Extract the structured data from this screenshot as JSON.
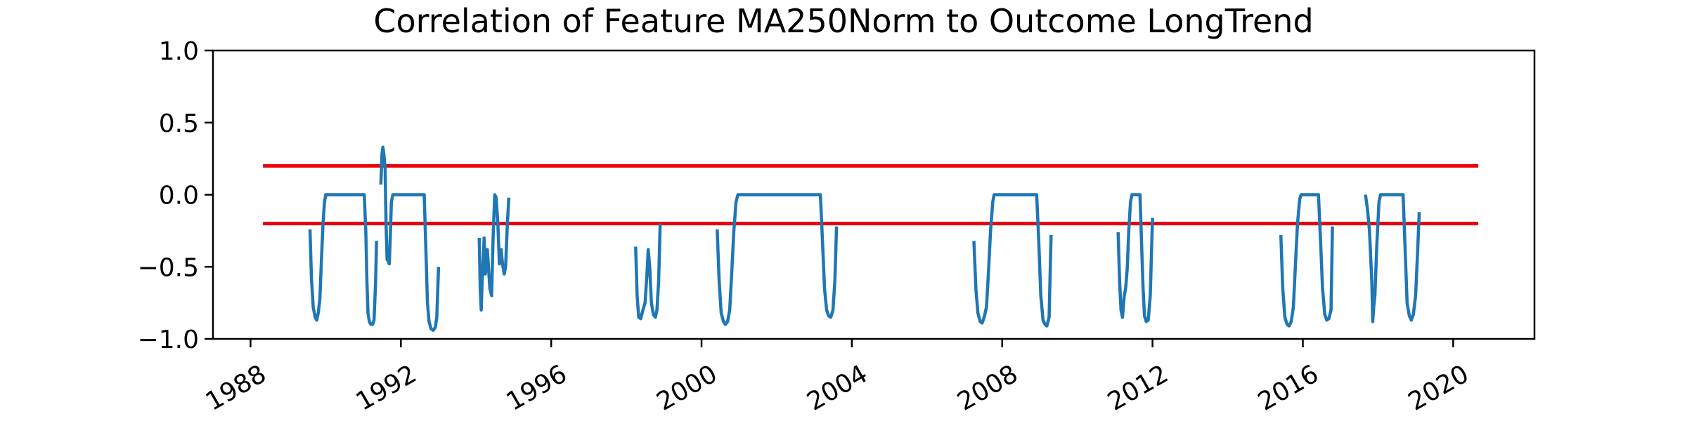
{
  "chart_data": {
    "type": "line",
    "title": "Correlation of Feature MA250Norm to Outcome LongTrend",
    "xlabel": "",
    "ylabel": "",
    "xlim": [
      "1987-01-01",
      "2022-03-01"
    ],
    "ylim": [
      -1.0,
      1.0
    ],
    "x_ticks": [
      "1988",
      "1992",
      "1996",
      "2000",
      "2004",
      "2008",
      "2012",
      "2016",
      "2020"
    ],
    "y_ticks": [
      "1.0",
      "0.5",
      "0.0",
      "−0.5",
      "−1.0"
    ],
    "y_tick_values": [
      1.0,
      0.5,
      0.0,
      -0.5,
      -1.0
    ],
    "grid": false,
    "legend": "none",
    "colors": {
      "series": "#1f77b4",
      "threshold": "#e8000b",
      "axis": "#000000"
    },
    "thresholds": [
      {
        "y": 0.2,
        "x_start": "1988-05-01",
        "x_end": "2020-09-01"
      },
      {
        "y": -0.2,
        "x_start": "1988-05-01",
        "x_end": "2020-09-01"
      }
    ],
    "series": [
      {
        "segments": [
          [
            [
              "1989-08-01",
              -0.24
            ],
            [
              "1989-08-15",
              -0.58
            ],
            [
              "1989-09-01",
              -0.78
            ],
            [
              "1989-09-20",
              -0.85
            ],
            [
              "1989-10-05",
              -0.87
            ],
            [
              "1989-10-20",
              -0.82
            ],
            [
              "1989-11-05",
              -0.72
            ],
            [
              "1989-11-20",
              -0.45
            ],
            [
              "1989-12-05",
              -0.2
            ],
            [
              "1989-12-20",
              -0.05
            ],
            [
              "1990-01-01",
              0.0
            ],
            [
              "1991-01-10",
              0.0
            ],
            [
              "1991-01-25",
              -0.25
            ],
            [
              "1991-02-05",
              -0.6
            ],
            [
              "1991-02-15",
              -0.82
            ],
            [
              "1991-03-01",
              -0.88
            ],
            [
              "1991-03-15",
              -0.9
            ],
            [
              "1991-04-01",
              -0.9
            ],
            [
              "1991-04-15",
              -0.87
            ],
            [
              "1991-05-01",
              -0.6
            ],
            [
              "1991-05-10",
              -0.32
            ]
          ],
          [
            [
              "1991-06-20",
              0.07
            ],
            [
              "1991-07-01",
              0.28
            ],
            [
              "1991-07-10",
              0.33
            ],
            [
              "1991-07-20",
              0.28
            ],
            [
              "1991-08-01",
              0.18
            ],
            [
              "1991-08-10",
              -0.2
            ],
            [
              "1991-08-20",
              -0.45
            ],
            [
              "1991-09-01",
              -0.46
            ],
            [
              "1991-09-10",
              -0.48
            ],
            [
              "1991-09-20",
              -0.3
            ],
            [
              "1991-10-01",
              -0.05
            ],
            [
              "1991-10-15",
              0.0
            ],
            [
              "1992-08-15",
              0.0
            ],
            [
              "1992-09-01",
              -0.4
            ],
            [
              "1992-09-15",
              -0.75
            ],
            [
              "1992-10-01",
              -0.88
            ],
            [
              "1992-10-20",
              -0.93
            ],
            [
              "1992-11-10",
              -0.94
            ],
            [
              "1992-12-01",
              -0.92
            ],
            [
              "1992-12-15",
              -0.85
            ],
            [
              "1993-01-01",
              -0.5
            ]
          ],
          [
            [
              "1994-02-01",
              -0.3
            ],
            [
              "1994-02-10",
              -0.65
            ],
            [
              "1994-02-20",
              -0.8
            ],
            [
              "1994-03-01",
              -0.6
            ],
            [
              "1994-03-15",
              -0.4
            ],
            [
              "1994-03-20",
              -0.3
            ],
            [
              "1994-04-01",
              -0.55
            ],
            [
              "1994-04-10",
              -0.5
            ],
            [
              "1994-04-20",
              -0.38
            ],
            [
              "1994-05-01",
              -0.5
            ],
            [
              "1994-05-15",
              -0.65
            ],
            [
              "1994-06-01",
              -0.7
            ],
            [
              "1994-06-15",
              -0.3
            ],
            [
              "1994-07-01",
              0.0
            ],
            [
              "1994-07-15",
              -0.02
            ],
            [
              "1994-08-01",
              -0.2
            ],
            [
              "1994-08-15",
              -0.48
            ],
            [
              "1994-09-01",
              -0.38
            ],
            [
              "1994-09-15",
              -0.48
            ],
            [
              "1994-10-01",
              -0.55
            ],
            [
              "1994-10-15",
              -0.5
            ],
            [
              "1994-11-01",
              -0.2
            ],
            [
              "1994-11-15",
              -0.02
            ]
          ],
          [
            [
              "1998-04-01",
              -0.36
            ],
            [
              "1998-04-15",
              -0.7
            ],
            [
              "1998-05-01",
              -0.85
            ],
            [
              "1998-05-20",
              -0.86
            ],
            [
              "1998-06-10",
              -0.8
            ],
            [
              "1998-07-01",
              -0.75
            ],
            [
              "1998-07-20",
              -0.55
            ],
            [
              "1998-08-01",
              -0.38
            ],
            [
              "1998-08-15",
              -0.5
            ],
            [
              "1998-09-01",
              -0.75
            ],
            [
              "1998-09-20",
              -0.83
            ],
            [
              "1998-10-10",
              -0.85
            ],
            [
              "1998-10-25",
              -0.8
            ],
            [
              "1998-11-10",
              -0.6
            ],
            [
              "1998-11-25",
              -0.2
            ]
          ],
          [
            [
              "2000-06-01",
              -0.24
            ],
            [
              "2000-06-20",
              -0.6
            ],
            [
              "2000-07-10",
              -0.82
            ],
            [
              "2000-08-01",
              -0.88
            ],
            [
              "2000-08-20",
              -0.9
            ],
            [
              "2000-09-10",
              -0.88
            ],
            [
              "2000-10-01",
              -0.8
            ],
            [
              "2000-10-20",
              -0.55
            ],
            [
              "2000-11-10",
              -0.25
            ],
            [
              "2000-12-01",
              -0.05
            ],
            [
              "2000-12-20",
              0.0
            ],
            [
              "2003-03-01",
              0.0
            ],
            [
              "2003-03-20",
              -0.3
            ],
            [
              "2003-04-10",
              -0.65
            ],
            [
              "2003-05-01",
              -0.8
            ],
            [
              "2003-05-20",
              -0.84
            ],
            [
              "2003-06-10",
              -0.85
            ],
            [
              "2003-07-01",
              -0.8
            ],
            [
              "2003-07-20",
              -0.6
            ],
            [
              "2003-08-05",
              -0.22
            ]
          ],
          [
            [
              "2007-04-01",
              -0.32
            ],
            [
              "2007-04-20",
              -0.65
            ],
            [
              "2007-05-10",
              -0.82
            ],
            [
              "2007-06-01",
              -0.88
            ],
            [
              "2007-06-20",
              -0.89
            ],
            [
              "2007-07-10",
              -0.85
            ],
            [
              "2007-08-01",
              -0.78
            ],
            [
              "2007-08-20",
              -0.55
            ],
            [
              "2007-09-10",
              -0.25
            ],
            [
              "2007-10-01",
              -0.05
            ],
            [
              "2007-10-15",
              0.0
            ],
            [
              "2008-12-01",
              0.0
            ],
            [
              "2008-12-20",
              -0.3
            ],
            [
              "2009-01-10",
              -0.7
            ],
            [
              "2009-02-01",
              -0.87
            ],
            [
              "2009-02-20",
              -0.9
            ],
            [
              "2009-03-10",
              -0.91
            ],
            [
              "2009-04-01",
              -0.85
            ],
            [
              "2009-04-20",
              -0.28
            ]
          ],
          [
            [
              "2011-02-01",
              -0.26
            ],
            [
              "2011-02-15",
              -0.6
            ],
            [
              "2011-03-01",
              -0.8
            ],
            [
              "2011-03-15",
              -0.85
            ],
            [
              "2011-04-01",
              -0.7
            ],
            [
              "2011-04-15",
              -0.65
            ],
            [
              "2011-05-01",
              -0.5
            ],
            [
              "2011-05-15",
              -0.25
            ],
            [
              "2011-06-01",
              -0.05
            ],
            [
              "2011-06-15",
              0.0
            ],
            [
              "2011-09-01",
              0.0
            ],
            [
              "2011-09-15",
              -0.3
            ],
            [
              "2011-10-01",
              -0.65
            ],
            [
              "2011-10-15",
              -0.84
            ],
            [
              "2011-11-01",
              -0.88
            ],
            [
              "2011-11-20",
              -0.87
            ],
            [
              "2011-12-10",
              -0.7
            ],
            [
              "2012-01-01",
              -0.16
            ]
          ],
          [
            [
              "2015-06-01",
              -0.28
            ],
            [
              "2015-06-20",
              -0.65
            ],
            [
              "2015-07-10",
              -0.85
            ],
            [
              "2015-08-01",
              -0.9
            ],
            [
              "2015-08-20",
              -0.91
            ],
            [
              "2015-09-10",
              -0.88
            ],
            [
              "2015-10-01",
              -0.78
            ],
            [
              "2015-10-20",
              -0.5
            ],
            [
              "2015-11-10",
              -0.2
            ],
            [
              "2015-12-01",
              -0.03
            ],
            [
              "2015-12-15",
              0.0
            ],
            [
              "2016-06-01",
              0.0
            ],
            [
              "2016-06-20",
              -0.3
            ],
            [
              "2016-07-10",
              -0.65
            ],
            [
              "2016-08-01",
              -0.83
            ],
            [
              "2016-08-20",
              -0.87
            ],
            [
              "2016-09-10",
              -0.86
            ],
            [
              "2016-10-01",
              -0.8
            ],
            [
              "2016-10-15",
              -0.22
            ]
          ],
          [
            [
              "2017-09-01",
              0.0
            ],
            [
              "2017-09-20",
              -0.1
            ],
            [
              "2017-10-10",
              -0.25
            ],
            [
              "2017-11-01",
              -0.6
            ],
            [
              "2017-11-10",
              -0.88
            ],
            [
              "2017-11-20",
              -0.78
            ],
            [
              "2017-12-01",
              -0.7
            ],
            [
              "2017-12-20",
              -0.35
            ],
            [
              "2018-01-10",
              -0.05
            ],
            [
              "2018-01-25",
              0.0
            ],
            [
              "2018-09-01",
              0.0
            ],
            [
              "2018-09-20",
              -0.35
            ],
            [
              "2018-10-10",
              -0.75
            ],
            [
              "2018-11-01",
              -0.84
            ],
            [
              "2018-11-20",
              -0.87
            ],
            [
              "2018-12-10",
              -0.83
            ],
            [
              "2019-01-01",
              -0.7
            ],
            [
              "2019-01-20",
              -0.4
            ],
            [
              "2019-02-05",
              -0.12
            ]
          ]
        ]
      }
    ]
  }
}
